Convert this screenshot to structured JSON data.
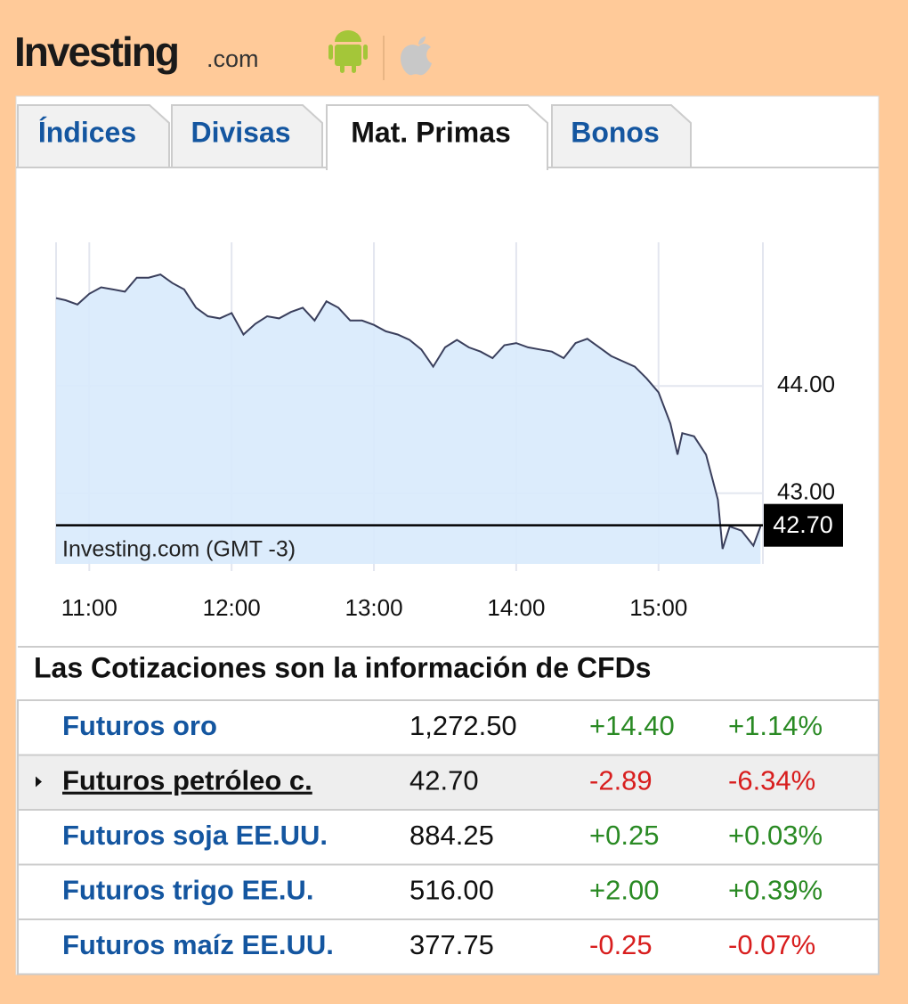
{
  "header": {
    "logo": "Investing",
    "logo_suffix": ".com"
  },
  "tabs": {
    "items": [
      "Índices",
      "Divisas",
      "Mat. Primas",
      "Bonos"
    ],
    "active": 2
  },
  "chart_data": {
    "type": "area",
    "watermark": "Investing.com (GMT -3)",
    "color": "#3a3f5c",
    "fill": "#d8eafc",
    "grid": true,
    "x": [
      "10:46",
      "10:50",
      "10:55",
      "11:00",
      "11:05",
      "11:10",
      "11:15",
      "11:20",
      "11:25",
      "11:30",
      "11:35",
      "11:40",
      "11:45",
      "11:50",
      "11:55",
      "12:00",
      "12:05",
      "12:10",
      "12:15",
      "12:20",
      "12:25",
      "12:30",
      "12:35",
      "12:40",
      "12:45",
      "12:50",
      "12:55",
      "13:00",
      "13:05",
      "13:10",
      "13:15",
      "13:20",
      "13:25",
      "13:30",
      "13:35",
      "13:40",
      "13:45",
      "13:50",
      "13:55",
      "14:00",
      "14:05",
      "14:10",
      "14:15",
      "14:20",
      "14:25",
      "14:30",
      "14:35",
      "14:40",
      "14:45",
      "14:50",
      "14:55",
      "15:00",
      "15:05",
      "15:08",
      "15:10",
      "15:15",
      "15:20",
      "15:25",
      "15:27",
      "15:30",
      "15:35",
      "15:40",
      "15:43"
    ],
    "values": [
      44.82,
      44.8,
      44.76,
      44.86,
      44.92,
      44.9,
      44.88,
      45.01,
      45.01,
      45.04,
      44.96,
      44.9,
      44.73,
      44.65,
      44.63,
      44.68,
      44.48,
      44.58,
      44.65,
      44.63,
      44.69,
      44.73,
      44.61,
      44.79,
      44.73,
      44.61,
      44.61,
      44.57,
      44.51,
      44.48,
      44.43,
      44.34,
      44.18,
      44.36,
      44.43,
      44.36,
      44.32,
      44.26,
      44.38,
      44.4,
      44.36,
      44.34,
      44.32,
      44.26,
      44.4,
      44.44,
      44.36,
      44.28,
      44.23,
      44.18,
      44.07,
      43.94,
      43.65,
      43.36,
      43.56,
      43.53,
      43.36,
      42.94,
      42.48,
      42.69,
      42.65,
      42.51,
      42.69
    ],
    "xlim": [
      "10:46",
      "15:44"
    ],
    "xticks": [
      "11:00",
      "12:00",
      "13:00",
      "14:00",
      "15:00"
    ],
    "ylim": [
      42.34,
      45.34
    ],
    "yticks": [
      {
        "value": 43,
        "label": "43.00"
      },
      {
        "value": 44,
        "label": "44.00"
      }
    ],
    "last_price": {
      "value": 42.7,
      "label": "42.70"
    }
  },
  "table": {
    "title": "Las Cotizaciones son la información de CFDs",
    "selected": 1,
    "rows": [
      [
        "Futuros oro",
        "1,272.50",
        "+14.40",
        "+1.14%"
      ],
      [
        "Futuros petróleo c.",
        "42.70",
        "-2.89",
        "-6.34%"
      ],
      [
        "Futuros soja EE.UU.",
        "884.25",
        "+0.25",
        "+0.03%"
      ],
      [
        "Futuros trigo EE.U.",
        "516.00",
        "+2.00",
        "+0.39%"
      ],
      [
        "Futuros maíz EE.UU.",
        "377.75",
        "-0.25",
        "-0.07%"
      ]
    ]
  }
}
